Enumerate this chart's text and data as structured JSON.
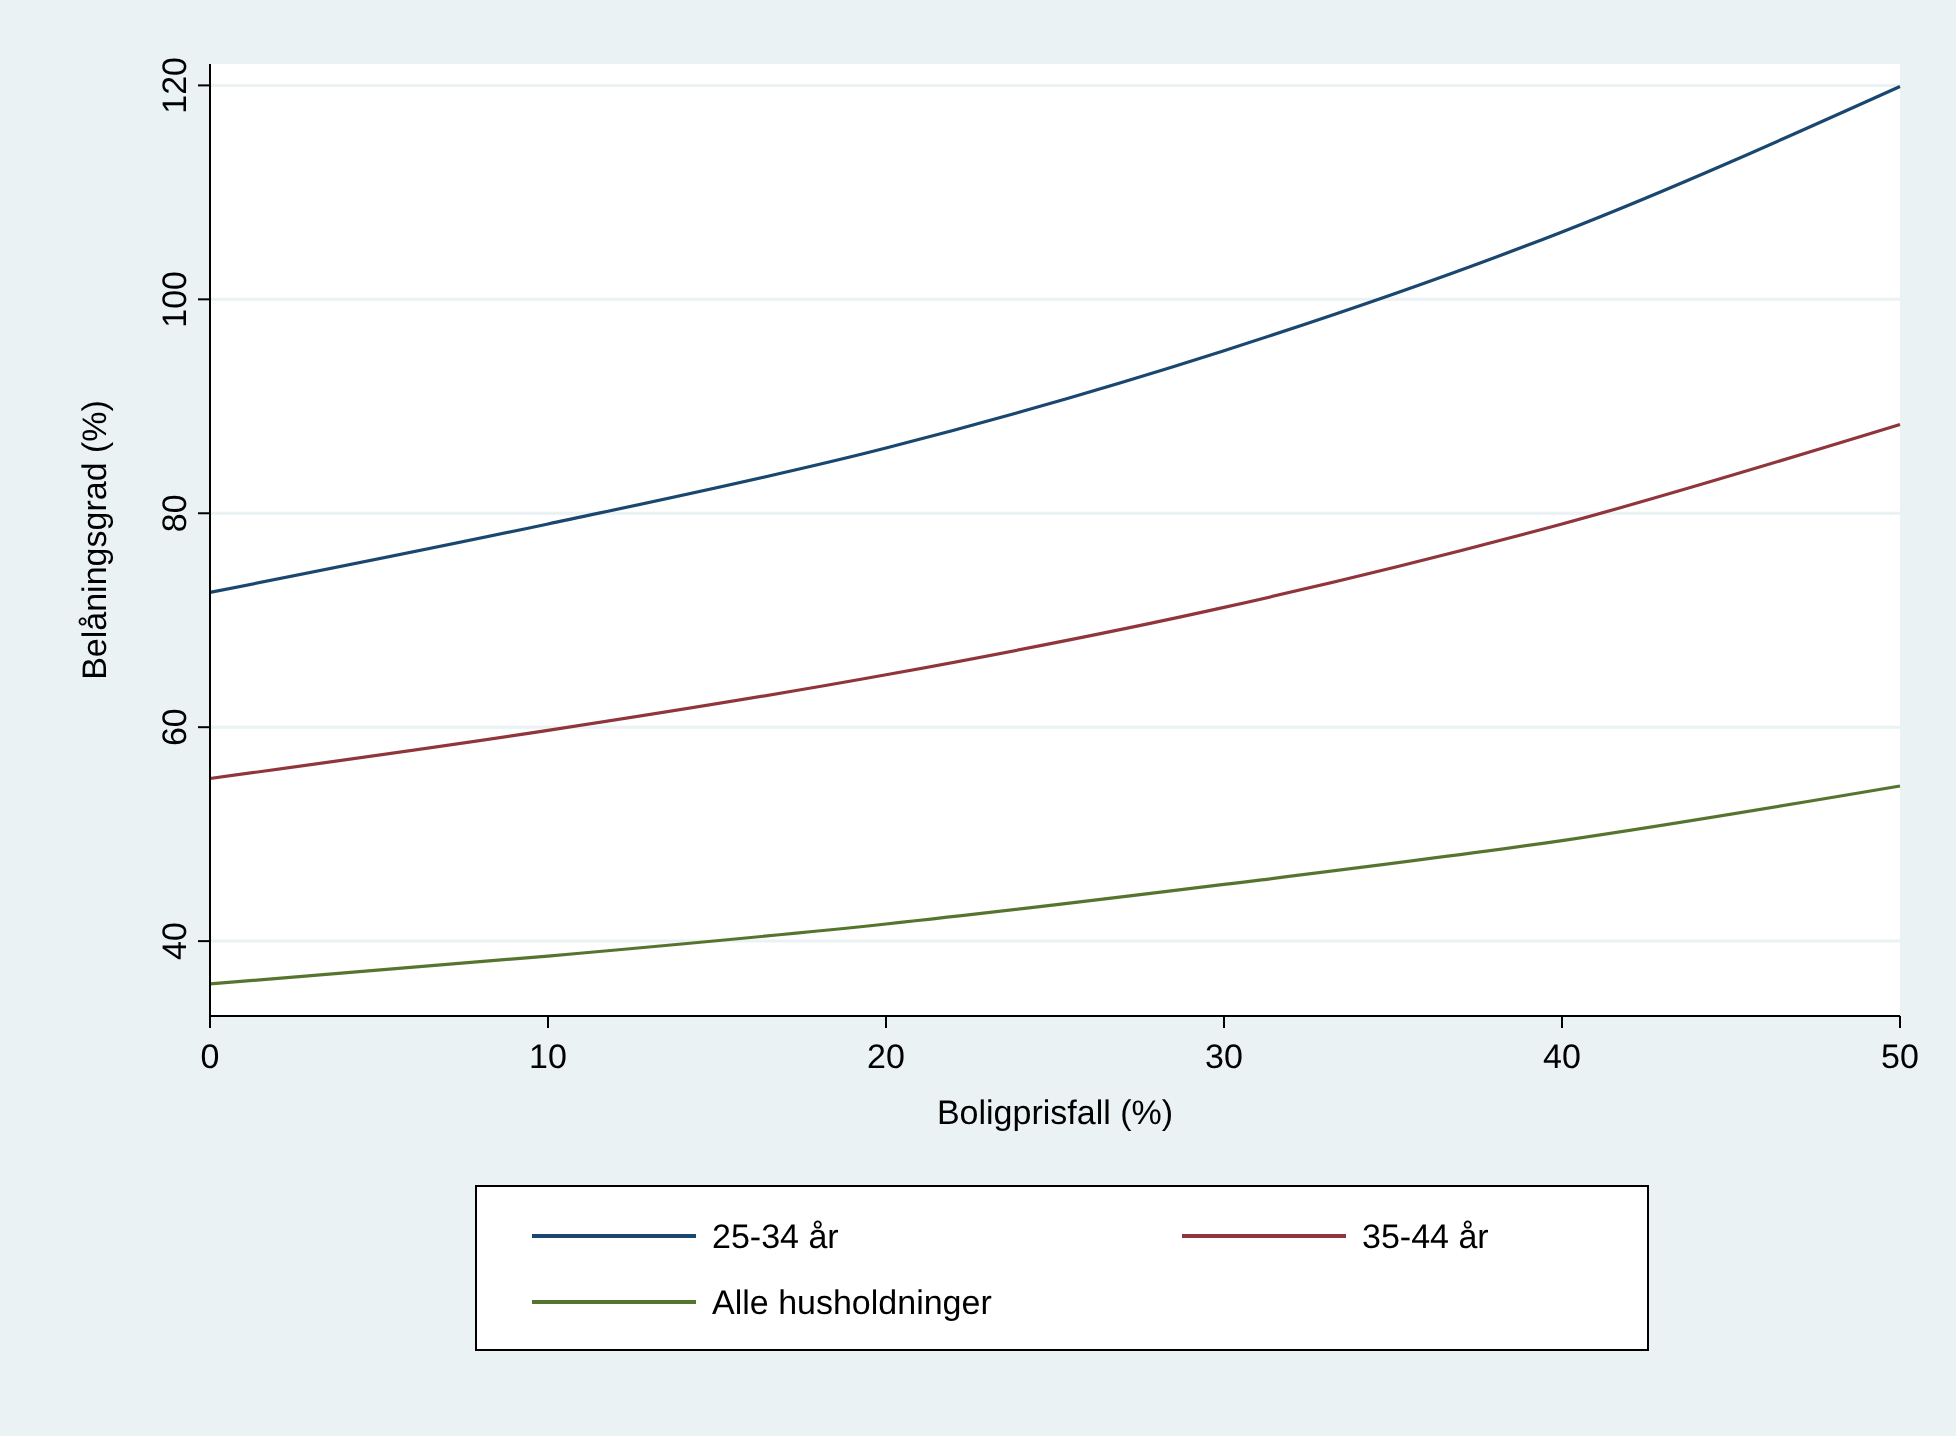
{
  "chart_data": {
    "type": "line",
    "xlabel": "Boligprisfall (%)",
    "ylabel": "Belåningsgrad (%)",
    "x": [
      0,
      10,
      20,
      30,
      40,
      50
    ],
    "series": [
      {
        "name": "25-34 år",
        "color": "#1a476f",
        "values": [
          72.6,
          79.0,
          86.1,
          95.2,
          106.3,
          119.9
        ]
      },
      {
        "name": "35-44 år",
        "color": "#90353b",
        "values": [
          55.2,
          59.7,
          64.9,
          71.2,
          79.0,
          88.3
        ]
      },
      {
        "name": "Alle husholdninger",
        "color": "#55752f",
        "values": [
          36.0,
          38.6,
          41.6,
          45.3,
          49.4,
          54.5
        ]
      }
    ],
    "xlim": [
      0,
      50
    ],
    "xticks": [
      0,
      10,
      20,
      30,
      40,
      50
    ],
    "ylim": [
      33,
      122
    ],
    "yticks": [
      40,
      60,
      80,
      100,
      120
    ],
    "grid": "y",
    "legend": "bottom",
    "marker": "none",
    "line_style": "solid"
  }
}
